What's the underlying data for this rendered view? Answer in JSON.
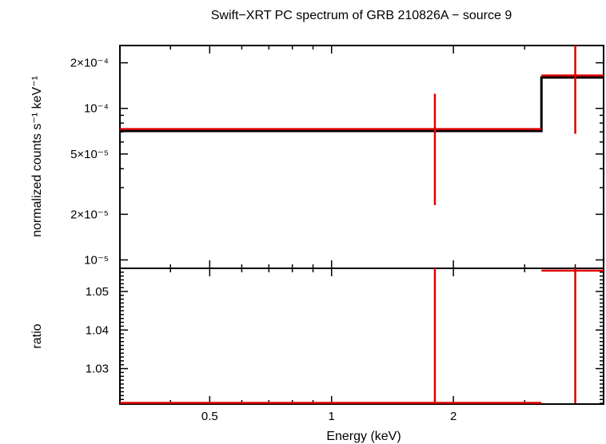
{
  "chart_data": [
    {
      "type": "line",
      "panel": "spectrum",
      "title": "Swift−XRT PC spectrum of GRB 210826A − source 9",
      "ylabel": "normalized counts s⁻¹ keV⁻¹",
      "xscale": "log",
      "yscale": "log",
      "xlim": [
        0.3,
        4.7
      ],
      "ylim": [
        8.8e-06,
        0.00026
      ],
      "y_ticks": [
        {
          "value": 1e-05,
          "label": "10⁻⁵"
        },
        {
          "value": 2e-05,
          "label": "2×10⁻⁵"
        },
        {
          "value": 5e-05,
          "label": "5×10⁻⁵"
        },
        {
          "value": 0.0001,
          "label": "10⁻⁴"
        },
        {
          "value": 0.0002,
          "label": "2×10⁻⁴"
        }
      ],
      "series": [
        {
          "kind": "model",
          "color": "#000000",
          "steps": [
            {
              "x0": 0.3,
              "x1": 3.3,
              "y": 7.1e-05
            },
            {
              "x0": 3.3,
              "x1": 4.7,
              "y": 0.00016
            }
          ]
        },
        {
          "kind": "data",
          "color": "#dd0000",
          "points": [
            {
              "x": 1.8,
              "xlo": 0.3,
              "xhi": 3.3,
              "y": 7.3e-05,
              "ylo": 2.3e-05,
              "yhi": 0.000125
            },
            {
              "x": 4.0,
              "xlo": 3.3,
              "xhi": 4.7,
              "y": 0.000165,
              "ylo": 6.8e-05,
              "yhi": 0.000275
            }
          ]
        }
      ]
    },
    {
      "type": "scatter",
      "panel": "ratio",
      "xlabel": "Energy (keV)",
      "ylabel": "ratio",
      "xscale": "log",
      "xlim": [
        0.3,
        4.7
      ],
      "ylim": [
        1.0208,
        1.056
      ],
      "x_ticks": [
        {
          "value": 0.5,
          "label": "0.5"
        },
        {
          "value": 1,
          "label": "1"
        },
        {
          "value": 2,
          "label": "2"
        }
      ],
      "y_ticks": [
        {
          "value": 1.03,
          "label": "1.03"
        },
        {
          "value": 1.04,
          "label": "1.04"
        },
        {
          "value": 1.05,
          "label": "1.05"
        }
      ],
      "series": [
        {
          "kind": "data",
          "color": "#dd0000",
          "points": [
            {
              "x": 1.8,
              "xlo": 0.3,
              "xhi": 3.3,
              "y": 1.0211,
              "ylo": 1.0211,
              "yhi": 1.06
            },
            {
              "x": 4.0,
              "xlo": 3.3,
              "xhi": 4.7,
              "y": 1.0554,
              "ylo": 1.0211,
              "yhi": 1.06
            }
          ]
        }
      ]
    }
  ]
}
